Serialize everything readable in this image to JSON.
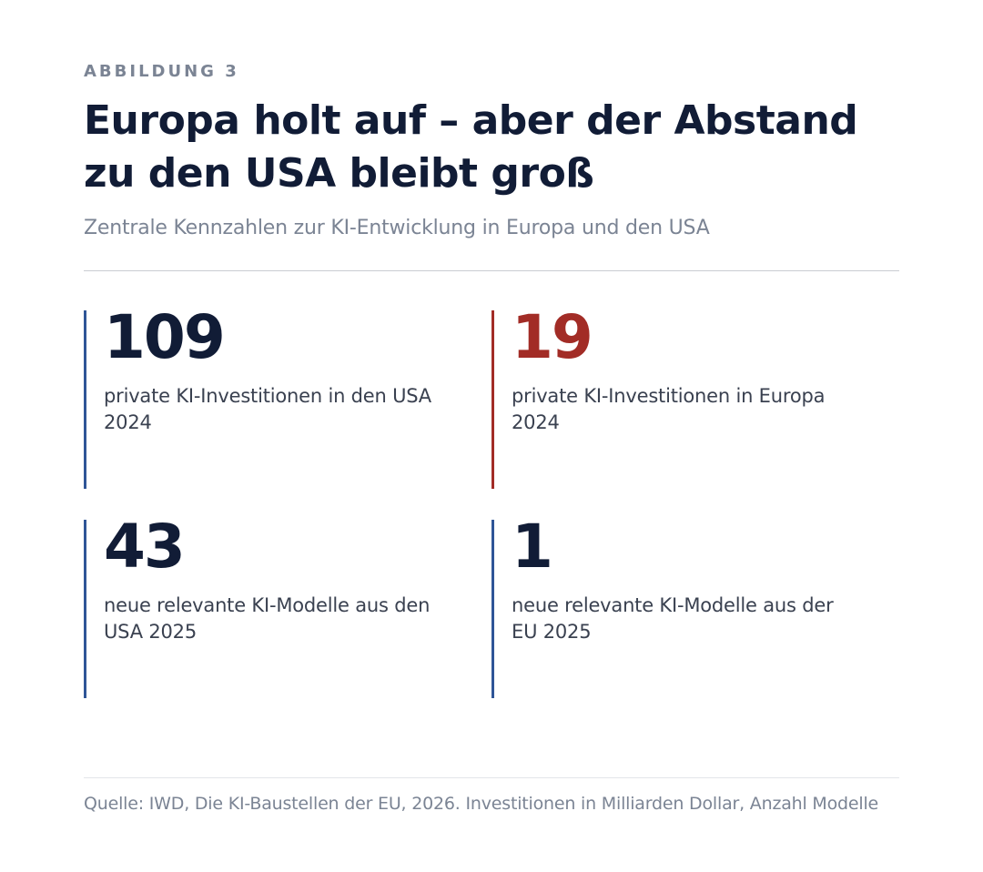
{
  "figure_label": "ABBILDUNG 3",
  "title": "Europa holt auf – aber der Abstand zu den USA bleibt groß",
  "subtitle": "Zentrale Kennzahlen zur KI-Entwicklung in Europa und den USA",
  "stats": [
    {
      "value": "109",
      "description": "private KI-Investitionen in den USA 2024",
      "value_color": "#111c36",
      "bar_color": "#2f5597"
    },
    {
      "value": "19",
      "description": "private KI-Investitionen in Europa 2024",
      "value_color": "#a22c26",
      "bar_color": "#a22c26"
    },
    {
      "value": "43",
      "description": "neue relevante KI-Modelle aus den USA 2025",
      "value_color": "#111c36",
      "bar_color": "#2f5597"
    },
    {
      "value": "1",
      "description": "neue relevante KI-Modelle aus der EU 2025",
      "value_color": "#111c36",
      "bar_color": "#2f5597"
    }
  ],
  "source": "Quelle: IWD, Die KI-Baustellen der EU, 2026. Investitionen in Milliarden Dollar, Anzahl Modelle"
}
